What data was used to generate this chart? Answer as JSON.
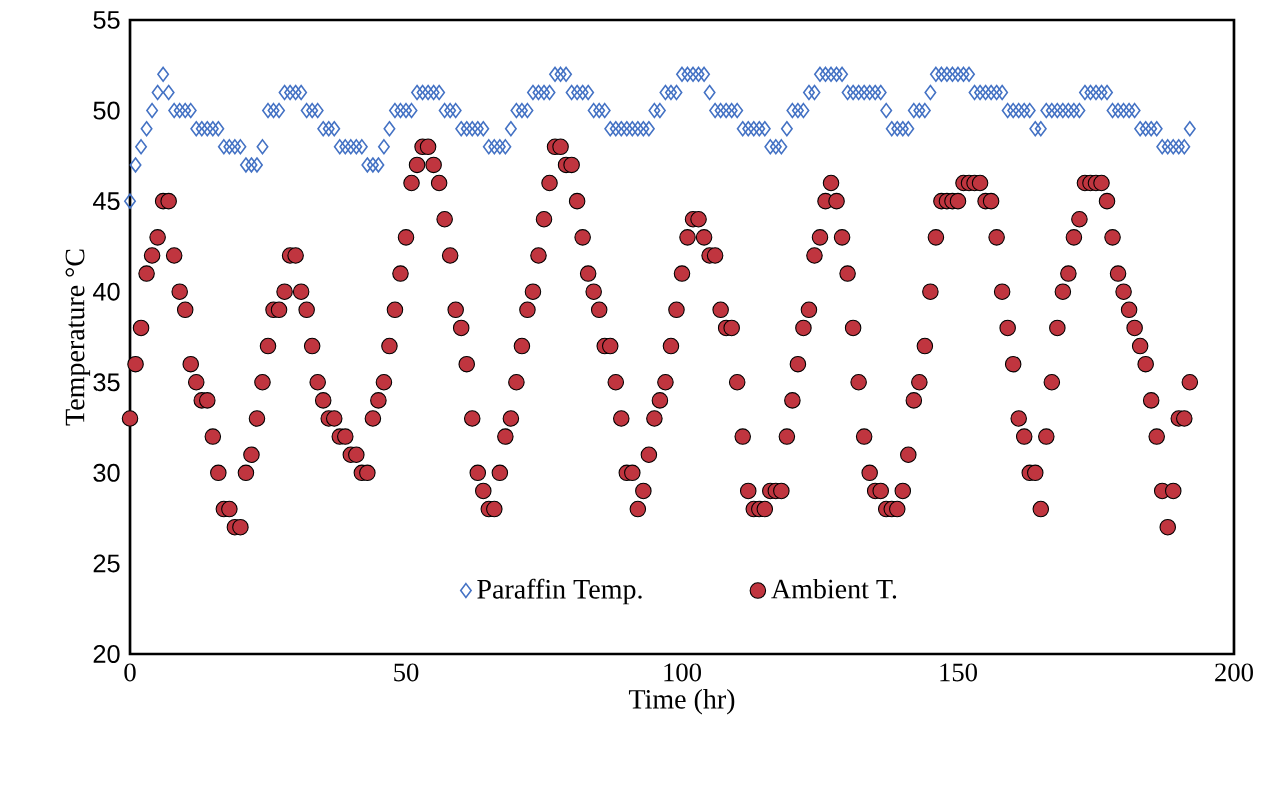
{
  "chart_data": {
    "type": "scatter",
    "xlabel": "Time (hr)",
    "ylabel": "Temperature °C",
    "x": [
      0,
      1,
      2,
      3,
      4,
      5,
      6,
      7,
      8,
      9,
      10,
      11,
      12,
      13,
      14,
      15,
      16,
      17,
      18,
      19,
      20,
      21,
      22,
      23,
      24,
      25,
      26,
      27,
      28,
      29,
      30,
      31,
      32,
      33,
      34,
      35,
      36,
      37,
      38,
      39,
      40,
      41,
      42,
      43,
      44,
      45,
      46,
      47,
      48,
      49,
      50,
      51,
      52,
      53,
      54,
      55,
      56,
      57,
      58,
      59,
      60,
      61,
      62,
      63,
      64,
      65,
      66,
      67,
      68,
      69,
      70,
      71,
      72,
      73,
      74,
      75,
      76,
      77,
      78,
      79,
      80,
      81,
      82,
      83,
      84,
      85,
      86,
      87,
      88,
      89,
      90,
      91,
      92,
      93,
      94,
      95,
      96,
      97,
      98,
      99,
      100,
      101,
      102,
      103,
      104,
      105,
      106,
      107,
      108,
      109,
      110,
      111,
      112,
      113,
      114,
      115,
      116,
      117,
      118,
      119,
      120,
      121,
      122,
      123,
      124,
      125,
      126,
      127,
      128,
      129,
      130,
      131,
      132,
      133,
      134,
      135,
      136,
      137,
      138,
      139,
      140,
      141,
      142,
      143,
      144,
      145,
      146,
      147,
      148,
      149,
      150,
      151,
      152,
      153,
      154,
      155,
      156,
      157,
      158,
      159,
      160,
      161,
      162,
      163,
      164,
      165,
      166,
      167,
      168,
      169,
      170,
      171,
      172,
      173,
      174,
      175,
      176,
      177,
      178,
      179,
      180,
      181,
      182,
      183,
      184,
      185,
      186,
      187,
      188,
      189,
      190,
      191,
      192
    ],
    "series": [
      {
        "name": "Paraffin Temp.",
        "color": "#4472c4",
        "marker": "diamond",
        "values": [
          45,
          47,
          48,
          49,
          50,
          51,
          52,
          51,
          50,
          50,
          50,
          50,
          49,
          49,
          49,
          49,
          49,
          48,
          48,
          48,
          48,
          47,
          47,
          47,
          48,
          50,
          50,
          50,
          51,
          51,
          51,
          51,
          50,
          50,
          50,
          49,
          49,
          49,
          48,
          48,
          48,
          48,
          48,
          47,
          47,
          47,
          48,
          49,
          50,
          50,
          50,
          50,
          51,
          51,
          51,
          51,
          51,
          50,
          50,
          50,
          49,
          49,
          49,
          49,
          49,
          48,
          48,
          48,
          48,
          49,
          50,
          50,
          50,
          51,
          51,
          51,
          51,
          52,
          52,
          52,
          51,
          51,
          51,
          51,
          50,
          50,
          50,
          49,
          49,
          49,
          49,
          49,
          49,
          49,
          49,
          50,
          50,
          51,
          51,
          51,
          52,
          52,
          52,
          52,
          52,
          51,
          50,
          50,
          50,
          50,
          50,
          49,
          49,
          49,
          49,
          49,
          48,
          48,
          48,
          49,
          50,
          50,
          50,
          51,
          51,
          52,
          52,
          52,
          52,
          52,
          51,
          51,
          51,
          51,
          51,
          51,
          51,
          50,
          49,
          49,
          49,
          49,
          50,
          50,
          50,
          51,
          52,
          52,
          52,
          52,
          52,
          52,
          52,
          51,
          51,
          51,
          51,
          51,
          51,
          50,
          50,
          50,
          50,
          50,
          49,
          49,
          50,
          50,
          50,
          50,
          50,
          50,
          50,
          51,
          51,
          51,
          51,
          51,
          50,
          50,
          50,
          50,
          50,
          49,
          49,
          49,
          49,
          48,
          48,
          48,
          48,
          48,
          49
        ]
      },
      {
        "name": "Ambient T.",
        "color": "#c0353f",
        "marker": "circle",
        "values": [
          33,
          36,
          38,
          41,
          42,
          43,
          45,
          45,
          42,
          40,
          39,
          36,
          35,
          34,
          34,
          32,
          30,
          28,
          28,
          27,
          27,
          30,
          31,
          33,
          35,
          37,
          39,
          39,
          40,
          42,
          42,
          40,
          39,
          37,
          35,
          34,
          33,
          33,
          32,
          32,
          31,
          31,
          30,
          30,
          33,
          34,
          35,
          37,
          39,
          41,
          43,
          46,
          47,
          48,
          48,
          47,
          46,
          44,
          42,
          39,
          38,
          36,
          33,
          30,
          29,
          28,
          28,
          30,
          32,
          33,
          35,
          37,
          39,
          40,
          42,
          44,
          46,
          48,
          48,
          47,
          47,
          45,
          43,
          41,
          40,
          39,
          37,
          37,
          35,
          33,
          30,
          30,
          28,
          29,
          31,
          33,
          34,
          35,
          37,
          39,
          41,
          43,
          44,
          44,
          43,
          42,
          42,
          39,
          38,
          38,
          35,
          32,
          29,
          28,
          28,
          28,
          29,
          29,
          29,
          32,
          34,
          36,
          38,
          39,
          42,
          43,
          45,
          46,
          45,
          43,
          41,
          38,
          35,
          32,
          30,
          29,
          29,
          28,
          28,
          28,
          29,
          31,
          34,
          35,
          37,
          40,
          43,
          45,
          45,
          45,
          45,
          46,
          46,
          46,
          46,
          45,
          45,
          43,
          40,
          38,
          36,
          33,
          32,
          30,
          30,
          28,
          32,
          35,
          38,
          40,
          41,
          43,
          44,
          46,
          46,
          46,
          46,
          45,
          43,
          41,
          40,
          39,
          38,
          37,
          36,
          34,
          32,
          29,
          27,
          29,
          33,
          33,
          35
        ]
      }
    ],
    "xlim": [
      0,
      200
    ],
    "xticks": [
      0,
      50,
      100,
      150,
      200
    ],
    "ylim": [
      20,
      55
    ],
    "yticks": [
      20,
      25,
      30,
      35,
      40,
      45,
      50,
      55
    ],
    "grid": false,
    "legend": "bottom"
  }
}
